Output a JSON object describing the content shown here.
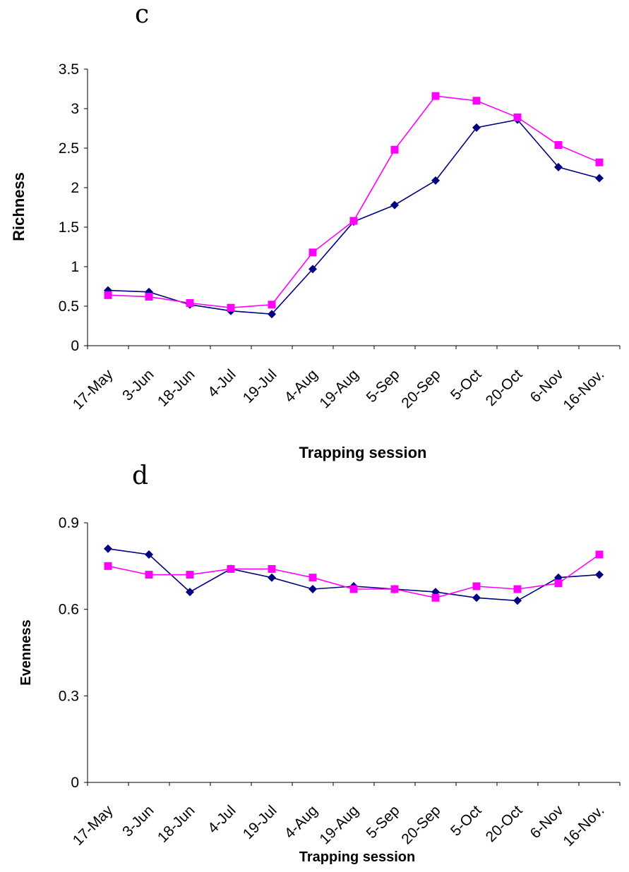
{
  "colors": {
    "series_1": "#000080",
    "series_2": "#ff00ff",
    "axis": "#000000"
  },
  "chart_data": [
    {
      "panel": "c",
      "type": "line",
      "xlabel": "Trapping session",
      "ylabel": "Richness",
      "categories": [
        "17-May",
        "3-Jun",
        "18-Jun",
        "4-Jul",
        "19-Jul",
        "4-Aug",
        "19-Aug",
        "5-Sep",
        "20-Sep",
        "5-Oct",
        "20-Oct",
        "6-Nov",
        "16-Nov."
      ],
      "ylim": [
        0,
        3.5
      ],
      "yticks": [
        0,
        0.5,
        1,
        1.5,
        2,
        2.5,
        3,
        3.5
      ],
      "ytick_labels": [
        "0",
        "0.5",
        "1",
        "1.5",
        "2",
        "2.5",
        "3",
        "3.5"
      ],
      "grid": false,
      "series": [
        {
          "marker": "diamond",
          "color": "#000080",
          "values": [
            0.7,
            0.68,
            0.52,
            0.44,
            0.4,
            0.97,
            1.57,
            1.78,
            2.09,
            2.76,
            2.86,
            2.26,
            2.12
          ]
        },
        {
          "marker": "square",
          "color": "#ff00ff",
          "values": [
            0.64,
            0.62,
            0.54,
            0.48,
            0.52,
            1.18,
            1.58,
            2.48,
            3.16,
            3.1,
            2.89,
            2.54,
            2.32
          ]
        }
      ]
    },
    {
      "panel": "d",
      "type": "line",
      "xlabel": "Trapping session",
      "ylabel": "Evenness",
      "categories": [
        "17-May",
        "3-Jun",
        "18-Jun",
        "4-Jul",
        "19-Jul",
        "4-Aug",
        "19-Aug",
        "5-Sep",
        "20-Sep",
        "5-Oct",
        "20-Oct",
        "6-Nov",
        "16-Nov."
      ],
      "ylim": [
        0,
        0.9
      ],
      "yticks": [
        0,
        0.3,
        0.6,
        0.9
      ],
      "ytick_labels": [
        "0",
        "0.3",
        "0.6",
        "0.9"
      ],
      "grid": false,
      "series": [
        {
          "marker": "diamond",
          "color": "#000080",
          "values": [
            0.81,
            0.79,
            0.66,
            0.74,
            0.71,
            0.67,
            0.68,
            0.67,
            0.66,
            0.64,
            0.63,
            0.71,
            0.72
          ]
        },
        {
          "marker": "square",
          "color": "#ff00ff",
          "values": [
            0.75,
            0.72,
            0.72,
            0.74,
            0.74,
            0.71,
            0.67,
            0.67,
            0.64,
            0.68,
            0.67,
            0.69,
            0.79
          ]
        }
      ]
    }
  ]
}
